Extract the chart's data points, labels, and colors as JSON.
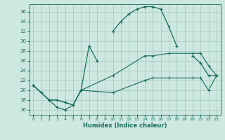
{
  "xlabel": "Humidex (Indice chaleur)",
  "background_color": "#cce8e0",
  "grid_color": "#aaccc4",
  "line_color": "#1a6b5a",
  "xlim": [
    -0.5,
    23.5
  ],
  "ylim": [
    15,
    37.5
  ],
  "xticks": [
    0,
    1,
    2,
    3,
    4,
    5,
    6,
    7,
    8,
    9,
    10,
    11,
    12,
    13,
    14,
    15,
    16,
    17,
    18,
    19,
    20,
    21,
    22,
    23
  ],
  "yticks": [
    16,
    18,
    20,
    22,
    24,
    26,
    28,
    30,
    32,
    34,
    36
  ],
  "series1_x": [
    0,
    1,
    2,
    3,
    4,
    5,
    6,
    7,
    8,
    9,
    10,
    11,
    12,
    13,
    14,
    15,
    16,
    17,
    18,
    19,
    20,
    21,
    22,
    23
  ],
  "series1_y": [
    21.0,
    19.5,
    18.0,
    16.5,
    16.0,
    17.0,
    20.0,
    29.0,
    26.0,
    null,
    32.0,
    34.0,
    35.5,
    36.5,
    37.0,
    37.0,
    36.5,
    33.0,
    29.0,
    null,
    27.0,
    25.5,
    23.0,
    23.0
  ],
  "series2_x": [
    0,
    2,
    3,
    4,
    5,
    6,
    10,
    14,
    15,
    17,
    20,
    21,
    22,
    23
  ],
  "series2_y": [
    21.0,
    18.0,
    18.0,
    17.5,
    17.0,
    20.0,
    23.0,
    27.0,
    27.0,
    27.5,
    27.5,
    27.5,
    25.0,
    23.0
  ],
  "series3_x": [
    0,
    2,
    3,
    4,
    5,
    6,
    10,
    14,
    15,
    17,
    20,
    21,
    22,
    23
  ],
  "series3_y": [
    21.0,
    18.0,
    18.0,
    17.5,
    17.0,
    20.0,
    19.5,
    22.0,
    22.5,
    22.5,
    22.5,
    22.5,
    20.0,
    23.0
  ]
}
